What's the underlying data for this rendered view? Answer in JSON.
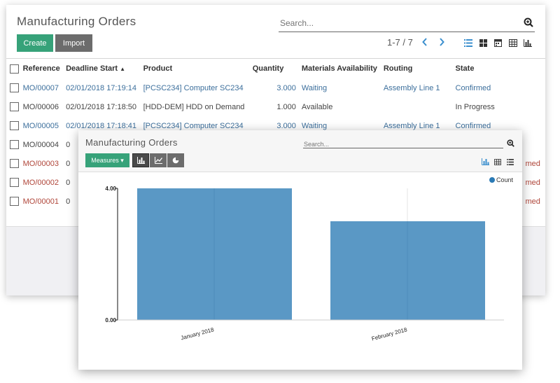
{
  "list_view": {
    "title": "Manufacturing Orders",
    "search_placeholder": "Search...",
    "create_label": "Create",
    "import_label": "Import",
    "pager": "1-7 / 7",
    "columns": {
      "reference": "Reference",
      "deadline": "Deadline Start",
      "product": "Product",
      "quantity": "Quantity",
      "materials": "Materials Availability",
      "routing": "Routing",
      "state": "State"
    },
    "sort_indicator": "▲",
    "rows": [
      {
        "reference": "MO/00007",
        "deadline": "02/01/2018 17:19:14",
        "product": "[PCSC234] Computer SC234",
        "quantity": "3.000",
        "materials": "Waiting",
        "routing": "Assembly Line 1",
        "state": "Confirmed"
      },
      {
        "reference": "MO/00006",
        "deadline": "02/01/2018 17:18:50",
        "product": "[HDD-DEM] HDD on Demand",
        "quantity": "1.000",
        "materials": "Available",
        "routing": "",
        "state": "In Progress"
      },
      {
        "reference": "MO/00005",
        "deadline": "02/01/2018 17:18:41",
        "product": "[PCSC234] Computer SC234",
        "quantity": "3.000",
        "materials": "Waiting",
        "routing": "Assembly Line 1",
        "state": "Confirmed"
      },
      {
        "reference": "MO/00004",
        "deadline": "0",
        "product": "",
        "quantity": "",
        "materials": "",
        "routing": "",
        "state": ""
      },
      {
        "reference": "MO/00003",
        "deadline": "0",
        "product": "",
        "quantity": "",
        "materials": "",
        "routing": "",
        "state": "med"
      },
      {
        "reference": "MO/00002",
        "deadline": "0",
        "product": "",
        "quantity": "",
        "materials": "",
        "routing": "",
        "state": "med"
      },
      {
        "reference": "MO/00001",
        "deadline": "0",
        "product": "",
        "quantity": "",
        "materials": "",
        "routing": "",
        "state": "med"
      }
    ]
  },
  "graph_view": {
    "title": "Manufacturing Orders",
    "search_placeholder": "Search...",
    "measures_label": "Measures ▾",
    "graph_modes": [
      "bar-chart-icon",
      "line-chart-icon",
      "pie-chart-icon"
    ],
    "active_mode": "bar-chart-icon"
  },
  "colors": {
    "primary": "#36a279",
    "secondary": "#6c6c6c",
    "link": "#3c6f9c",
    "late": "#b0463a",
    "bar": "#5a98c5",
    "legend_dot": "#2a7ab5"
  },
  "chart_data": {
    "type": "bar",
    "categories": [
      "January 2018",
      "February 2018"
    ],
    "series": [
      {
        "name": "Count",
        "values": [
          4,
          3
        ]
      }
    ],
    "ylim": [
      0,
      4
    ],
    "y_ticks": [
      "0.00",
      "4.00"
    ],
    "legend": "top-right",
    "grid": true
  }
}
